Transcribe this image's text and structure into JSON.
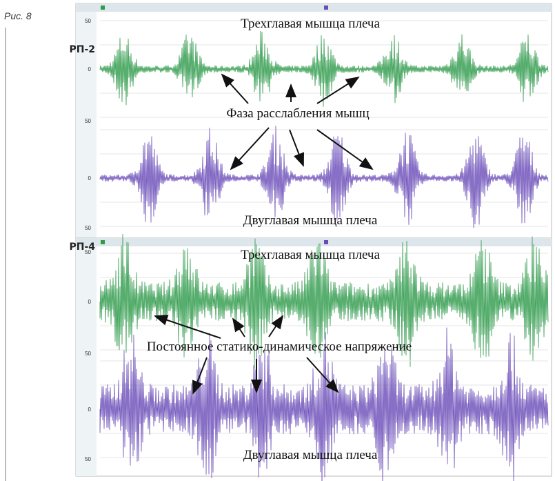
{
  "figure_label": "Рис. 8",
  "panels": [
    {
      "label": "РП-2",
      "annotation": "Фаза расслабления мышц",
      "traces": [
        {
          "muscle": "Трехглавая мышца плеча",
          "yticks": [
            50,
            0
          ]
        },
        {
          "muscle": "Двуглавая мышца плеча",
          "yticks": [
            50,
            0,
            50
          ]
        }
      ]
    },
    {
      "label": "РП-4",
      "annotation": "Постоянное статико-динамическое напряжение",
      "traces": [
        {
          "muscle": "Трехглавая мышца плеча",
          "yticks": [
            50,
            0
          ]
        },
        {
          "muscle": "Двуглавая мышца плеча",
          "yticks": [
            50,
            0,
            50
          ]
        }
      ]
    }
  ]
}
